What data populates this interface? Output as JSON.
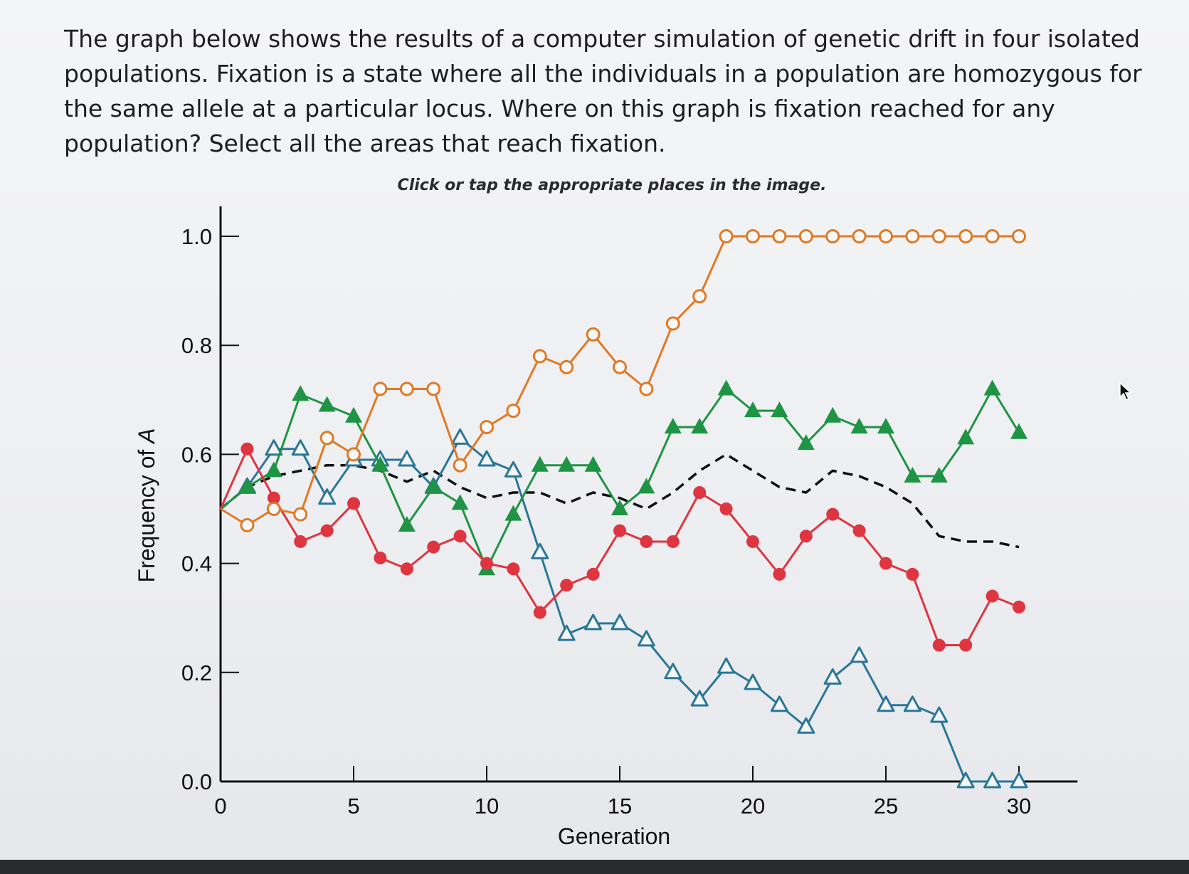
{
  "question": {
    "text": "The graph below shows the results of a computer simulation of genetic drift in four isolated populations. Fixation is a state where all the individuals in a population are homozygous for the same allele at a particular locus. Where on this graph is fixation reached for any population? Select all the areas that reach fixation.",
    "instruction": "Click or tap the appropriate places in the image."
  },
  "colors": {
    "orange": "#e07a25",
    "green": "#1e9444",
    "blue": "#2a7797",
    "red": "#de3541",
    "black": "#111111",
    "axis": "#111111"
  },
  "icons": {
    "cursor": "mouse-pointer-icon"
  },
  "chart_data": {
    "type": "line",
    "xlabel": "Generation",
    "ylabel": "Frequency of A",
    "xlim": [
      0,
      32
    ],
    "ylim": [
      0,
      1.0
    ],
    "xticks": [
      0,
      5,
      10,
      15,
      20,
      25,
      30
    ],
    "yticks": [
      0.0,
      0.2,
      0.4,
      0.6,
      0.8,
      1.0
    ],
    "ytick_labels": [
      "0.0",
      "0.2",
      "0.4",
      "0.6",
      "0.8",
      "1.0"
    ],
    "grid": false,
    "legend": "none",
    "series": [
      {
        "marker": "open-circle",
        "color": "orange",
        "x": [
          0,
          1,
          2,
          3,
          4,
          5,
          6,
          7,
          8,
          9,
          10,
          11,
          12,
          13,
          14,
          15,
          16,
          17,
          18,
          19,
          20,
          21,
          22,
          23,
          24,
          25,
          26,
          27,
          28,
          29,
          30
        ],
        "y": [
          0.5,
          0.47,
          0.5,
          0.49,
          0.63,
          0.6,
          0.72,
          0.72,
          0.72,
          0.58,
          0.65,
          0.68,
          0.78,
          0.76,
          0.82,
          0.76,
          0.72,
          0.84,
          0.89,
          1.0,
          1.0,
          1.0,
          1.0,
          1.0,
          1.0,
          1.0,
          1.0,
          1.0,
          1.0,
          1.0,
          1.0
        ]
      },
      {
        "marker": "filled-triangle",
        "color": "green",
        "x": [
          0,
          1,
          2,
          3,
          4,
          5,
          6,
          7,
          8,
          9,
          10,
          11,
          12,
          13,
          14,
          15,
          16,
          17,
          18,
          19,
          20,
          21,
          22,
          23,
          24,
          25,
          26,
          27,
          28,
          29,
          30
        ],
        "y": [
          0.5,
          0.54,
          0.57,
          0.71,
          0.69,
          0.67,
          0.58,
          0.47,
          0.54,
          0.51,
          0.39,
          0.49,
          0.58,
          0.58,
          0.58,
          0.5,
          0.54,
          0.65,
          0.65,
          0.72,
          0.68,
          0.68,
          0.62,
          0.67,
          0.65,
          0.65,
          0.56,
          0.56,
          0.63,
          0.72,
          0.64
        ]
      },
      {
        "marker": "open-triangle",
        "color": "blue",
        "x": [
          0,
          1,
          2,
          3,
          4,
          5,
          6,
          7,
          8,
          9,
          10,
          11,
          12,
          13,
          14,
          15,
          16,
          17,
          18,
          19,
          20,
          21,
          22,
          23,
          24,
          25,
          26,
          27,
          28,
          29,
          30
        ],
        "y": [
          0.5,
          0.54,
          0.61,
          0.61,
          0.52,
          0.59,
          0.59,
          0.59,
          0.54,
          0.63,
          0.59,
          0.57,
          0.42,
          0.27,
          0.29,
          0.29,
          0.26,
          0.2,
          0.15,
          0.21,
          0.18,
          0.14,
          0.1,
          0.19,
          0.23,
          0.14,
          0.14,
          0.12,
          0.0,
          0.0,
          0.0
        ]
      },
      {
        "marker": "filled-circle",
        "color": "red",
        "x": [
          0,
          1,
          2,
          3,
          4,
          5,
          6,
          7,
          8,
          9,
          10,
          11,
          12,
          13,
          14,
          15,
          16,
          17,
          18,
          19,
          20,
          21,
          22,
          23,
          24,
          25,
          26,
          27,
          28,
          29,
          30
        ],
        "y": [
          0.5,
          0.61,
          0.52,
          0.44,
          0.46,
          0.51,
          0.41,
          0.39,
          0.43,
          0.45,
          0.4,
          0.39,
          0.31,
          0.36,
          0.38,
          0.46,
          0.44,
          0.44,
          0.53,
          0.5,
          0.44,
          0.38,
          0.45,
          0.49,
          0.46,
          0.4,
          0.38,
          0.25,
          0.25,
          0.34,
          0.32
        ]
      },
      {
        "marker": "none",
        "style": "dashed",
        "color": "black",
        "x": [
          0,
          1,
          2,
          3,
          4,
          5,
          6,
          7,
          8,
          9,
          10,
          11,
          12,
          13,
          14,
          15,
          16,
          17,
          18,
          19,
          20,
          21,
          22,
          23,
          24,
          25,
          26,
          27,
          28,
          29,
          30
        ],
        "y": [
          0.5,
          0.54,
          0.56,
          0.57,
          0.58,
          0.58,
          0.57,
          0.55,
          0.57,
          0.54,
          0.52,
          0.53,
          0.53,
          0.51,
          0.53,
          0.52,
          0.5,
          0.53,
          0.57,
          0.6,
          0.57,
          0.54,
          0.53,
          0.57,
          0.56,
          0.54,
          0.51,
          0.45,
          0.44,
          0.44,
          0.43
        ]
      }
    ]
  }
}
